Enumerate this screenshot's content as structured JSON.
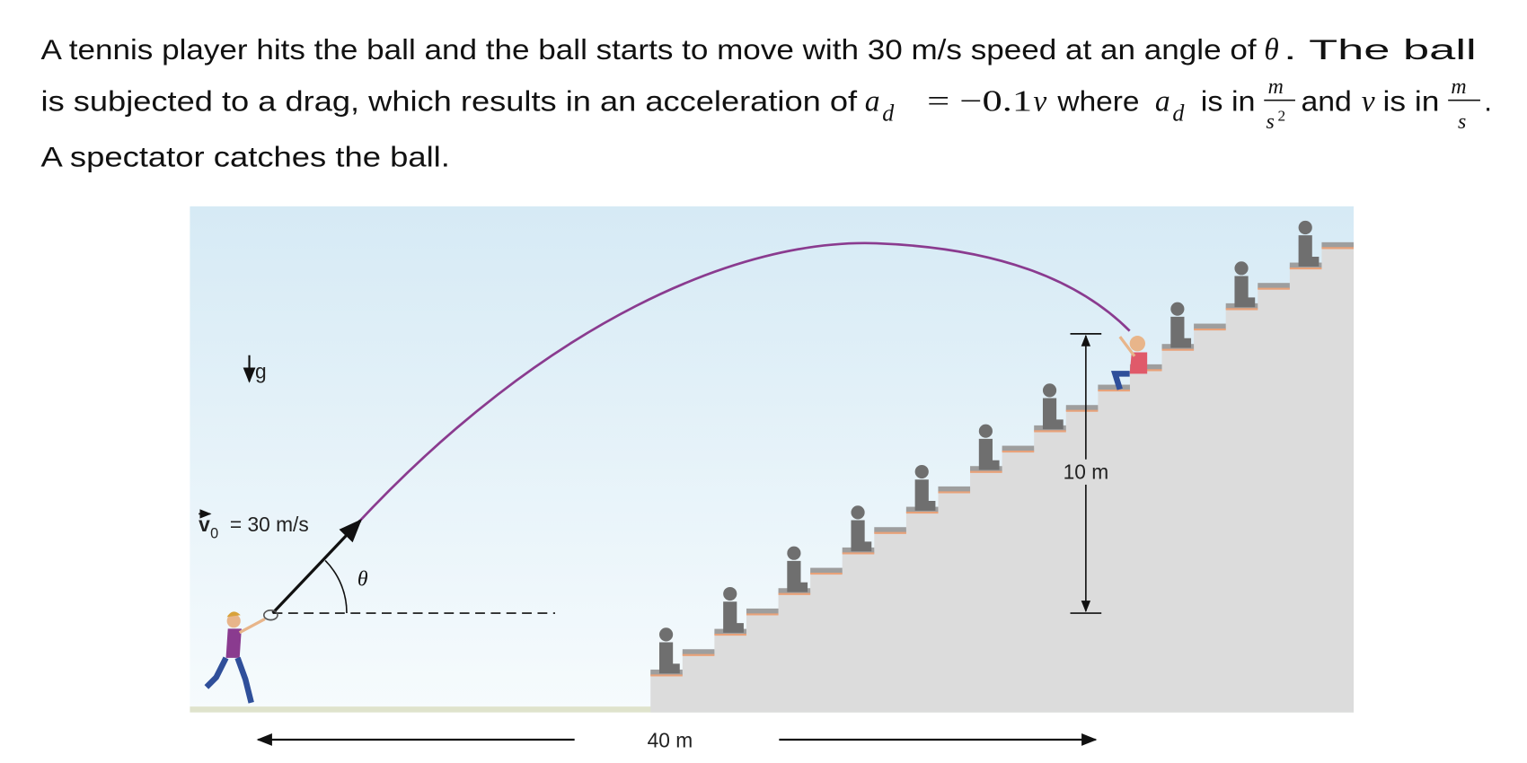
{
  "problem": {
    "line1": "A tennis player hits the ball and the ball starts to move with 30 m/s speed at an angle of",
    "theta": "θ",
    "line1_end": ". The ball",
    "line2": "is subjected to a drag, which results in an acceleration of",
    "a": "a",
    "d": "d",
    "eq": "= −0.1",
    "v": "v",
    "where": "where",
    "is_in": "is in",
    "m": "m",
    "s": "s",
    "exp": "2",
    "and": "and",
    "period": ".",
    "line3": "A spectator catches the ball."
  },
  "figure": {
    "g": "g",
    "v0": "v",
    "v0_sub": "0",
    "v0_eq": "= 30 m/s",
    "theta": "θ",
    "height": "10 m",
    "distance": "40 m"
  }
}
